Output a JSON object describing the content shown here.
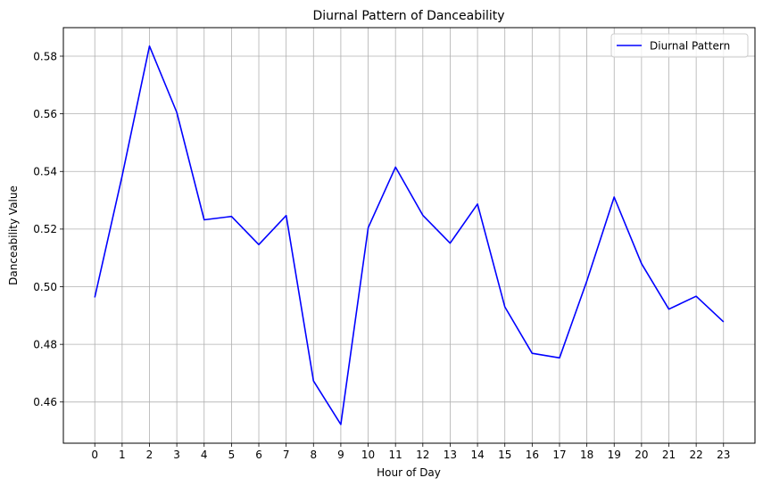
{
  "chart_data": {
    "type": "line",
    "title": "Diurnal Pattern of Danceability",
    "xlabel": "Hour of Day",
    "ylabel": "Danceability Value",
    "x": [
      0,
      1,
      2,
      3,
      4,
      5,
      6,
      7,
      8,
      9,
      10,
      11,
      12,
      13,
      14,
      15,
      16,
      17,
      18,
      19,
      20,
      21,
      22,
      23
    ],
    "series": [
      {
        "name": "Diurnal Pattern",
        "color": "#0000ff",
        "values": [
          0.4963,
          0.5385,
          0.5835,
          0.5605,
          0.5232,
          0.5244,
          0.5146,
          0.5247,
          0.4673,
          0.4522,
          0.5205,
          0.5415,
          0.5248,
          0.5151,
          0.5287,
          0.493,
          0.4769,
          0.4753,
          0.502,
          0.5311,
          0.508,
          0.4922,
          0.4967,
          0.4878
        ]
      }
    ],
    "xlim": [
      -1.15,
      24.15
    ],
    "ylim": [
      0.4457,
      0.5899
    ],
    "xticks": [
      "0",
      "1",
      "2",
      "3",
      "4",
      "5",
      "6",
      "7",
      "8",
      "9",
      "10",
      "11",
      "12",
      "13",
      "14",
      "15",
      "16",
      "17",
      "18",
      "19",
      "20",
      "21",
      "22",
      "23"
    ],
    "yticks": [
      0.46,
      0.48,
      0.5,
      0.52,
      0.54,
      0.56,
      0.58
    ],
    "ytick_labels": [
      "0.46",
      "0.48",
      "0.50",
      "0.52",
      "0.54",
      "0.56",
      "0.58"
    ],
    "grid": true,
    "legend": "top-right",
    "grid_color": "#b0b0b0"
  }
}
